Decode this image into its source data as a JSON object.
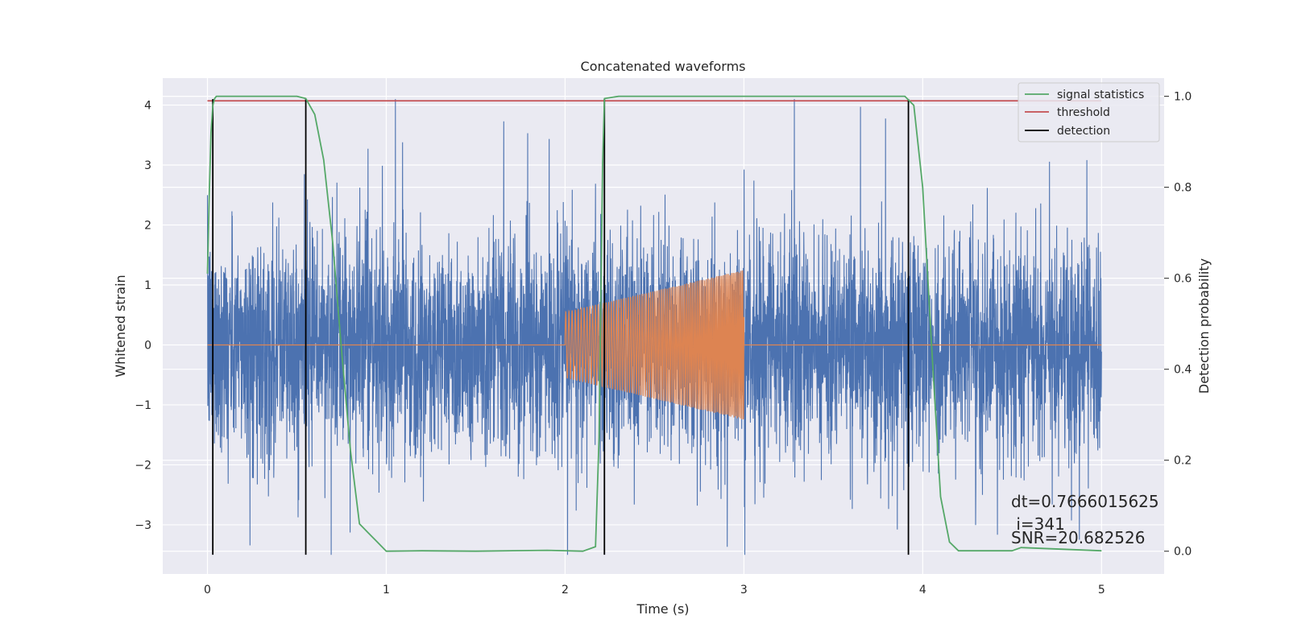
{
  "chart_data": {
    "type": "line",
    "title": "Concatenated waveforms",
    "xlabel": "Time (s)",
    "ylabel": "Whitened strain",
    "y2label": "Detection probability",
    "xlim": [
      -0.25,
      5.35
    ],
    "ylim": [
      -3.82,
      4.45
    ],
    "y2lim": [
      -0.05,
      1.04
    ],
    "x_ticks": [
      0,
      1,
      2,
      3,
      4,
      5
    ],
    "y_ticks": [
      -3,
      -2,
      -1,
      0,
      1,
      2,
      3,
      4
    ],
    "y2_ticks": [
      0.0,
      0.2,
      0.4,
      0.6,
      0.8,
      1.0
    ],
    "x_tick_labels": [
      "0",
      "1",
      "2",
      "3",
      "4",
      "5"
    ],
    "y_tick_labels": [
      "−3",
      "−2",
      "−1",
      "0",
      "1",
      "2",
      "3",
      "4"
    ],
    "y2_tick_labels": [
      "0.0",
      "0.2",
      "0.4",
      "0.6",
      "0.8",
      "1.0"
    ],
    "grid": true,
    "legend_position": "top-right",
    "colors": {
      "background": "#eaeaf2",
      "noise": "#4c72b0",
      "waveform": "#dd8452",
      "signal_statistics": "#55a868",
      "threshold": "#c44e52",
      "detection": "#000000"
    },
    "series": [
      {
        "name": "",
        "description": "whitened strain noise",
        "x_range": [
          0,
          5
        ],
        "amplitude_typical": 1.4,
        "amplitude_peak": 4.1
      },
      {
        "name": "",
        "description": "injected chirp waveform",
        "x_range": [
          2,
          3
        ],
        "envelope_start": 0.55,
        "envelope_end": 1.25
      },
      {
        "name": "signal statistics",
        "axis": "right",
        "x": [
          0.0,
          0.01,
          0.02,
          0.03,
          0.04,
          0.05,
          0.1,
          0.5,
          0.55,
          0.6,
          0.65,
          0.7,
          0.75,
          0.8,
          0.85,
          0.9,
          0.95,
          1.0,
          1.2,
          1.5,
          1.9,
          2.1,
          2.17,
          2.19,
          2.21,
          2.22,
          2.3,
          2.8,
          3.5,
          3.9,
          3.95,
          4.0,
          4.05,
          4.1,
          4.15,
          4.2,
          4.5,
          4.55,
          5.0
        ],
        "y": [
          0.61,
          0.78,
          0.92,
          0.98,
          0.995,
          1.0,
          1.0,
          1.0,
          0.995,
          0.96,
          0.86,
          0.68,
          0.44,
          0.22,
          0.06,
          0.04,
          0.02,
          0.0,
          0.001,
          0.0,
          0.002,
          0.0,
          0.01,
          0.25,
          0.85,
          0.995,
          1.0,
          1.0,
          1.0,
          1.0,
          0.98,
          0.8,
          0.45,
          0.12,
          0.02,
          0.001,
          0.001,
          0.008,
          0.001
        ]
      },
      {
        "name": "threshold",
        "axis": "right",
        "x": [
          0.0,
          5.0
        ],
        "y": [
          0.99,
          0.99
        ]
      },
      {
        "name": "detection",
        "axis": "left",
        "vlines": [
          0.03,
          0.55,
          2.22,
          3.92
        ],
        "y_range": [
          -3.5,
          4.1
        ]
      }
    ],
    "annotations": [
      "dt=0.7666015625",
      " i=341",
      "SNR=20.682526"
    ]
  }
}
